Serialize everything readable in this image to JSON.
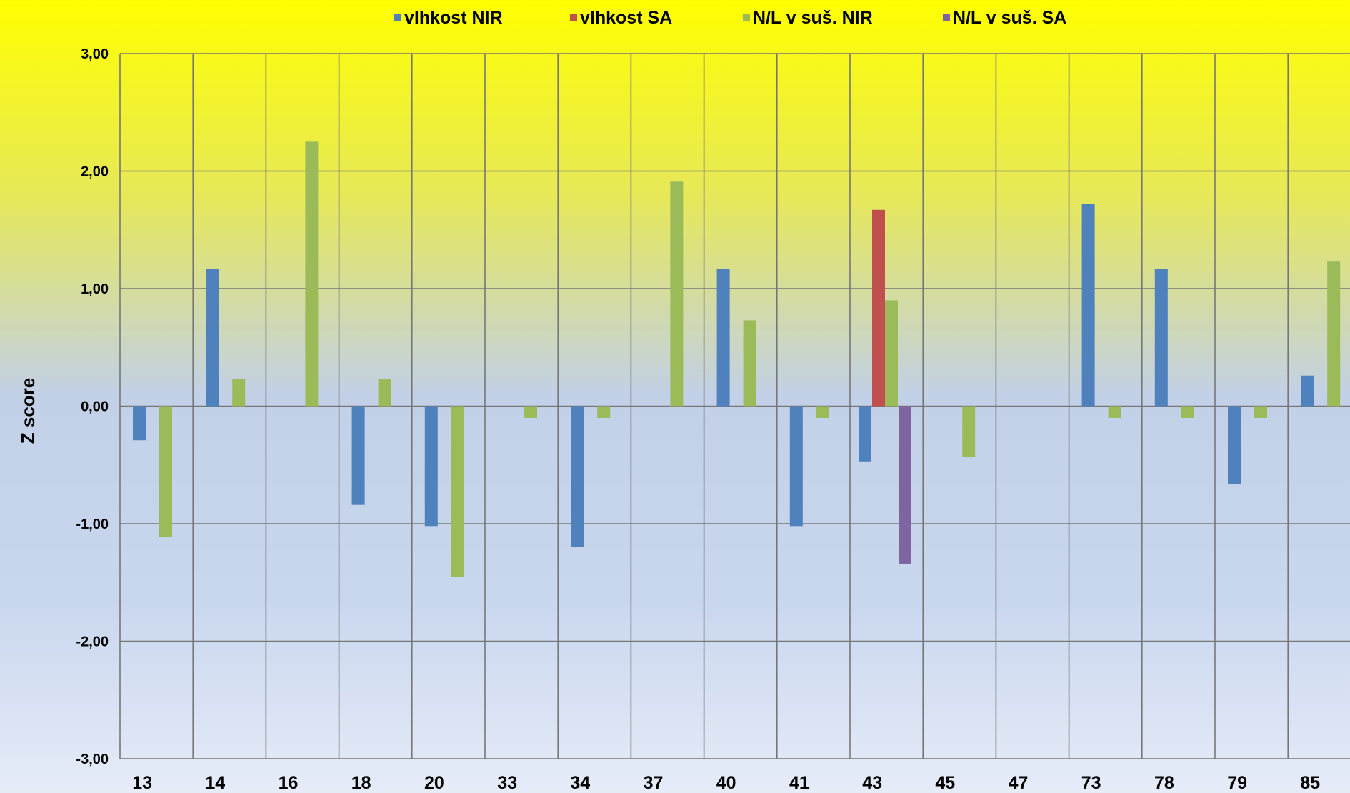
{
  "chart_data": {
    "type": "bar",
    "ylabel": "Z score",
    "ylim": [
      -3,
      3
    ],
    "y_ticks": [
      "3,00",
      "2,00",
      "1,00",
      "0,00",
      "-1,00",
      "-2,00",
      "-3,00"
    ],
    "grid": true,
    "legend_position": "top",
    "categories": [
      "13",
      "14",
      "16",
      "18",
      "20",
      "33",
      "34",
      "37",
      "40",
      "41",
      "43",
      "45",
      "47",
      "73",
      "78",
      "79",
      "85"
    ],
    "series": [
      {
        "name": "vlhkost NIR",
        "color": "#4f81bd",
        "values": [
          -0.29,
          1.17,
          null,
          -0.84,
          -1.02,
          null,
          -1.2,
          null,
          1.17,
          -1.02,
          -0.47,
          null,
          null,
          1.72,
          1.17,
          -0.66,
          0.26
        ]
      },
      {
        "name": "vlhkost SA",
        "color": "#c0504d",
        "values": [
          null,
          null,
          null,
          null,
          null,
          null,
          null,
          null,
          null,
          null,
          1.67,
          null,
          null,
          null,
          null,
          null,
          null
        ]
      },
      {
        "name": "N/L v suš. NIR",
        "color": "#9bbb59",
        "values": [
          -1.11,
          0.23,
          2.25,
          0.23,
          -1.45,
          -0.1,
          -0.1,
          1.91,
          0.73,
          -0.1,
          0.9,
          -0.43,
          null,
          -0.1,
          -0.1,
          -0.1,
          1.23
        ]
      },
      {
        "name": "N/L v suš. SA",
        "color": "#8064a2",
        "values": [
          null,
          null,
          null,
          null,
          null,
          null,
          null,
          null,
          null,
          null,
          -1.34,
          null,
          null,
          null,
          null,
          null,
          null
        ]
      }
    ]
  }
}
